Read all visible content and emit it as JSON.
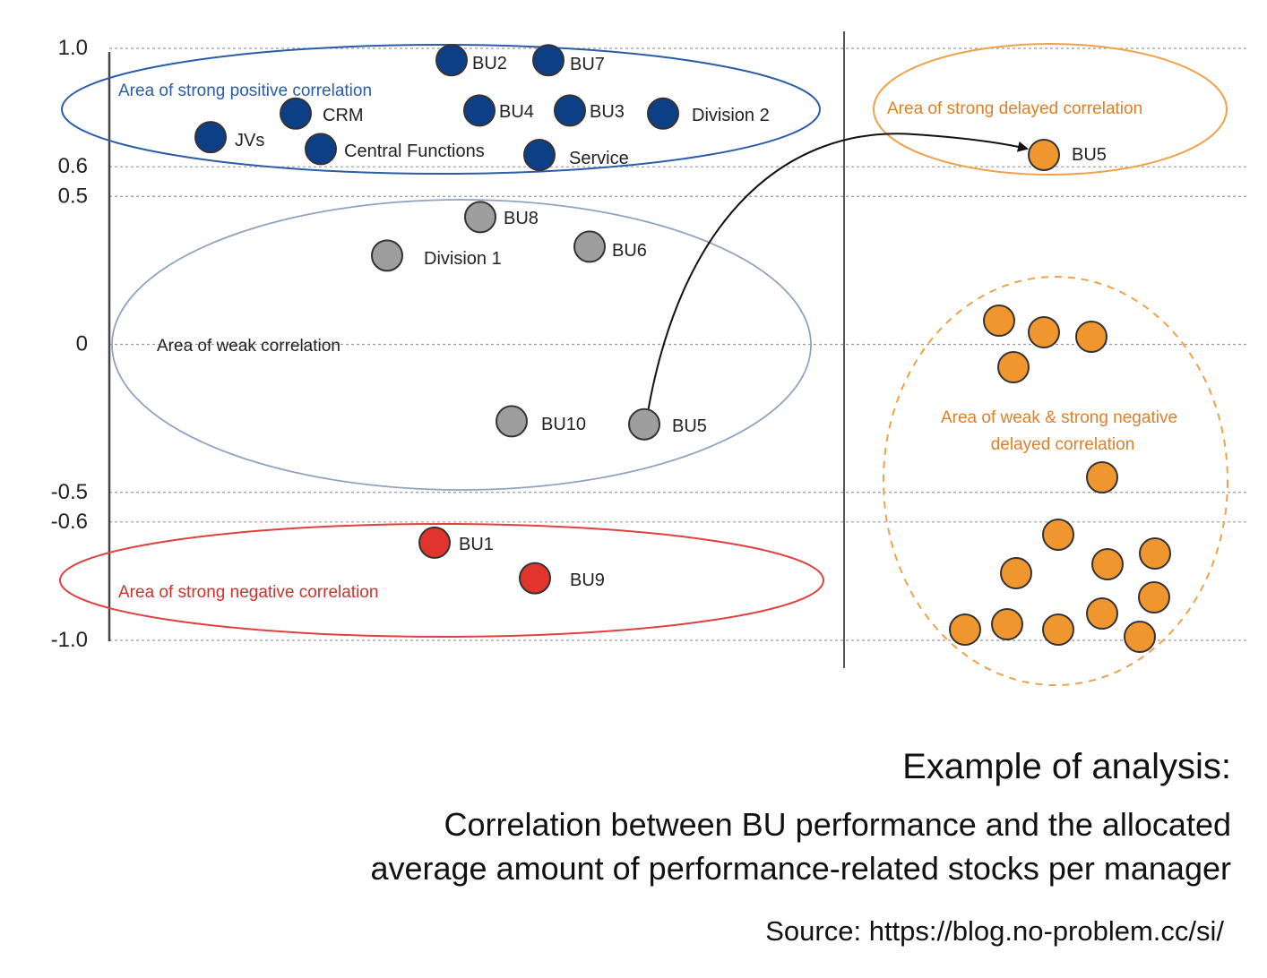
{
  "chart_data": {
    "type": "scatter",
    "y_ticks": [
      {
        "label": "1.0",
        "value": 1.0
      },
      {
        "label": "0.6",
        "value": 0.6
      },
      {
        "label": "0.5",
        "value": 0.5
      },
      {
        "label": "0",
        "value": 0
      },
      {
        "label": "-0.5",
        "value": -0.5
      },
      {
        "label": "-0.6",
        "value": -0.6
      },
      {
        "label": "-1.0",
        "value": -1.0
      }
    ],
    "ylim": [
      -1.0,
      1.0
    ],
    "grid": "dotted horizontal lines at tick values",
    "colors": {
      "strong_positive": "#0d3f86",
      "weak": "#9e9e9e",
      "strong_negative": "#e0342c",
      "delayed": "#f0962f",
      "positive_area": "#2a5ca8",
      "weak_area": "#8fa3bf",
      "negative_area": "#e04040",
      "delayed_area": "#f0a24a"
    },
    "areas": [
      {
        "key": "strong_positive",
        "label": "Area of strong positive correlation"
      },
      {
        "key": "weak",
        "label": "Area of weak correlation"
      },
      {
        "key": "strong_negative",
        "label": "Area of strong negative correlation"
      },
      {
        "key": "strong_delayed",
        "label": "Area of strong delayed correlation"
      },
      {
        "key": "negative_delayed",
        "label_lines": [
          "Area of weak & strong negative",
          "delayed correlation"
        ]
      }
    ],
    "series": [
      {
        "group": "strong_positive",
        "points": [
          {
            "label": "BU2",
            "y": 0.96
          },
          {
            "label": "BU7",
            "y": 0.96
          },
          {
            "label": "BU4",
            "y": 0.79
          },
          {
            "label": "BU3",
            "y": 0.79
          },
          {
            "label": "Division 2",
            "y": 0.78
          },
          {
            "label": "CRM",
            "y": 0.78
          },
          {
            "label": "JVs",
            "y": 0.7
          },
          {
            "label": "Central Functions",
            "y": 0.66
          },
          {
            "label": "Service",
            "y": 0.64
          }
        ]
      },
      {
        "group": "weak",
        "points": [
          {
            "label": "BU8",
            "y": 0.43
          },
          {
            "label": "BU6",
            "y": 0.33
          },
          {
            "label": "Division 1",
            "y": 0.3
          },
          {
            "label": "BU10",
            "y": -0.26
          },
          {
            "label": "BU5",
            "y": -0.27
          }
        ]
      },
      {
        "group": "strong_negative",
        "points": [
          {
            "label": "BU1",
            "y": -0.67
          },
          {
            "label": "BU9",
            "y": -0.79
          }
        ]
      },
      {
        "group": "delayed",
        "points": [
          {
            "label": "BU5",
            "y": 0.64
          }
        ]
      }
    ],
    "arrow": {
      "from": "BU5",
      "to": "BU5 (delayed)"
    }
  },
  "caption": {
    "title": "Example of analysis:",
    "subtitle_line1": "Correlation between BU performance and the allocated",
    "subtitle_line2": "average amount of performance-related stocks per manager",
    "source": "Source: https://blog.no-problem.cc/si/"
  }
}
